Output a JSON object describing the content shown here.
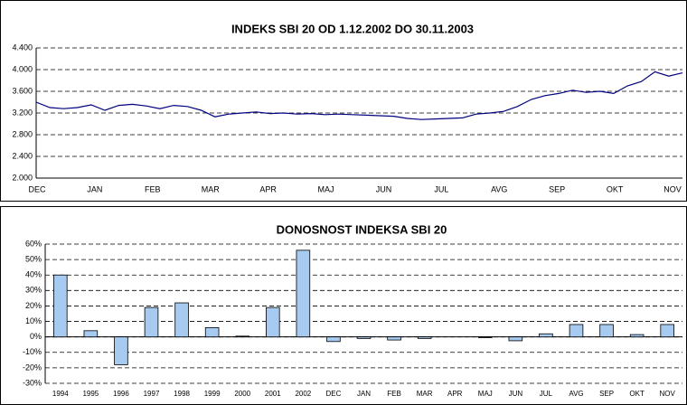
{
  "chart_data": [
    {
      "type": "line",
      "title": "INDEKS SBI 20 OD 1.12.2002 DO 30.11.2003",
      "xticks": [
        "DEC",
        "JAN",
        "FEB",
        "MAR",
        "APR",
        "MAJ",
        "JUN",
        "JUL",
        "AVG",
        "SEP",
        "OKT",
        "NOV"
      ],
      "values": [
        3400,
        3300,
        3280,
        3300,
        3350,
        3250,
        3340,
        3360,
        3330,
        3280,
        3340,
        3320,
        3250,
        3130,
        3180,
        3200,
        3220,
        3190,
        3200,
        3180,
        3190,
        3170,
        3180,
        3170,
        3160,
        3150,
        3140,
        3100,
        3080,
        3090,
        3100,
        3110,
        3180,
        3200,
        3230,
        3320,
        3450,
        3520,
        3560,
        3620,
        3580,
        3600,
        3560,
        3700,
        3780,
        3960,
        3880,
        3940
      ],
      "color": "#000080",
      "ylim": [
        2000,
        4400
      ],
      "yticks": [
        {
          "value": 2000,
          "label": "2.000"
        },
        {
          "value": 2400,
          "label": "2.400"
        },
        {
          "value": 2800,
          "label": "2.800"
        },
        {
          "value": 3200,
          "label": "3.200"
        },
        {
          "value": 3600,
          "label": "3.600"
        },
        {
          "value": 4000,
          "label": "4.000"
        },
        {
          "value": 4400,
          "label": "4.400"
        }
      ],
      "grid": true
    },
    {
      "type": "bar",
      "title": "DONOSNOST INDEKSA SBI 20",
      "categories": [
        "1994",
        "1995",
        "1996",
        "1997",
        "1998",
        "1999",
        "2000",
        "2001",
        "2002",
        "DEC",
        "JAN",
        "FEB",
        "MAR",
        "APR",
        "MAJ",
        "JUN",
        "JUL",
        "AVG",
        "SEP",
        "OKT",
        "NOV"
      ],
      "values": [
        40,
        4,
        -18,
        19,
        22,
        6,
        0.5,
        19,
        56,
        -3,
        -1,
        -2,
        -1,
        0,
        -0.5,
        -2.5,
        2,
        8,
        8,
        1.5,
        8
      ],
      "color": "#a6caf0",
      "ylim": [
        -30,
        60
      ],
      "yticks": [
        {
          "value": -30,
          "label": "-30%"
        },
        {
          "value": -20,
          "label": "-20%"
        },
        {
          "value": -10,
          "label": "-10%"
        },
        {
          "value": 0,
          "label": "0%"
        },
        {
          "value": 10,
          "label": "10%"
        },
        {
          "value": 20,
          "label": "20%"
        },
        {
          "value": 30,
          "label": "30%"
        },
        {
          "value": 40,
          "label": "40%"
        },
        {
          "value": 50,
          "label": "50%"
        },
        {
          "value": 60,
          "label": "60%"
        }
      ],
      "grid": true
    }
  ]
}
